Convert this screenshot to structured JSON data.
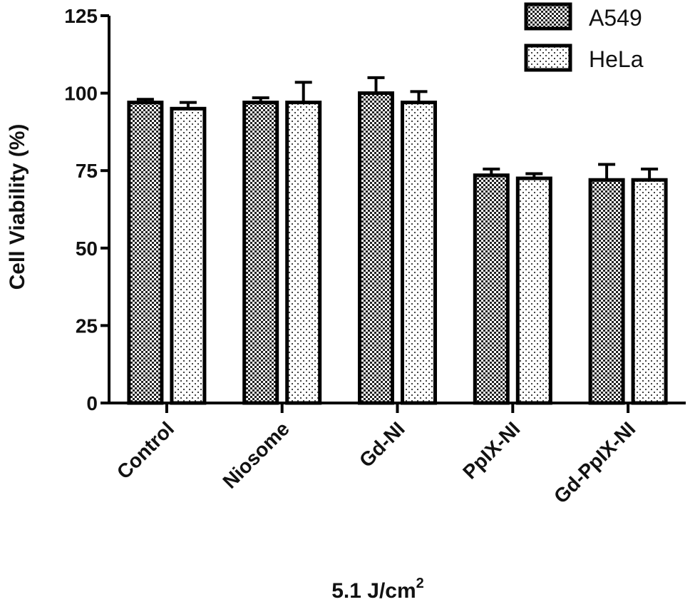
{
  "chart_data": {
    "type": "bar",
    "categories": [
      "Control",
      "Niosome",
      "Gd-NI",
      "PpIX-NI",
      "Gd-PpIX-NI"
    ],
    "series": [
      {
        "name": "A549",
        "values": [
          97,
          97,
          100,
          73.5,
          72
        ],
        "errors": [
          1,
          1.5,
          5,
          2,
          5
        ],
        "pattern": "checker"
      },
      {
        "name": "HeLa",
        "values": [
          95,
          97,
          97,
          72.5,
          72
        ],
        "errors": [
          2,
          6.5,
          3.5,
          1.5,
          3.5
        ],
        "pattern": "dots"
      }
    ],
    "ylabel": "Cell Viability (%)",
    "xlabel": "5.1 J/cm",
    "xlabel_superscript": "2",
    "ylim": [
      0,
      125
    ],
    "yticks": [
      "0",
      "25",
      "50",
      "75",
      "100",
      "125"
    ],
    "legend_position": "top-right",
    "grid": false,
    "colors": {
      "bar_outline": "#000000",
      "pattern_dark": "#222222",
      "background": "#ffffff"
    }
  }
}
